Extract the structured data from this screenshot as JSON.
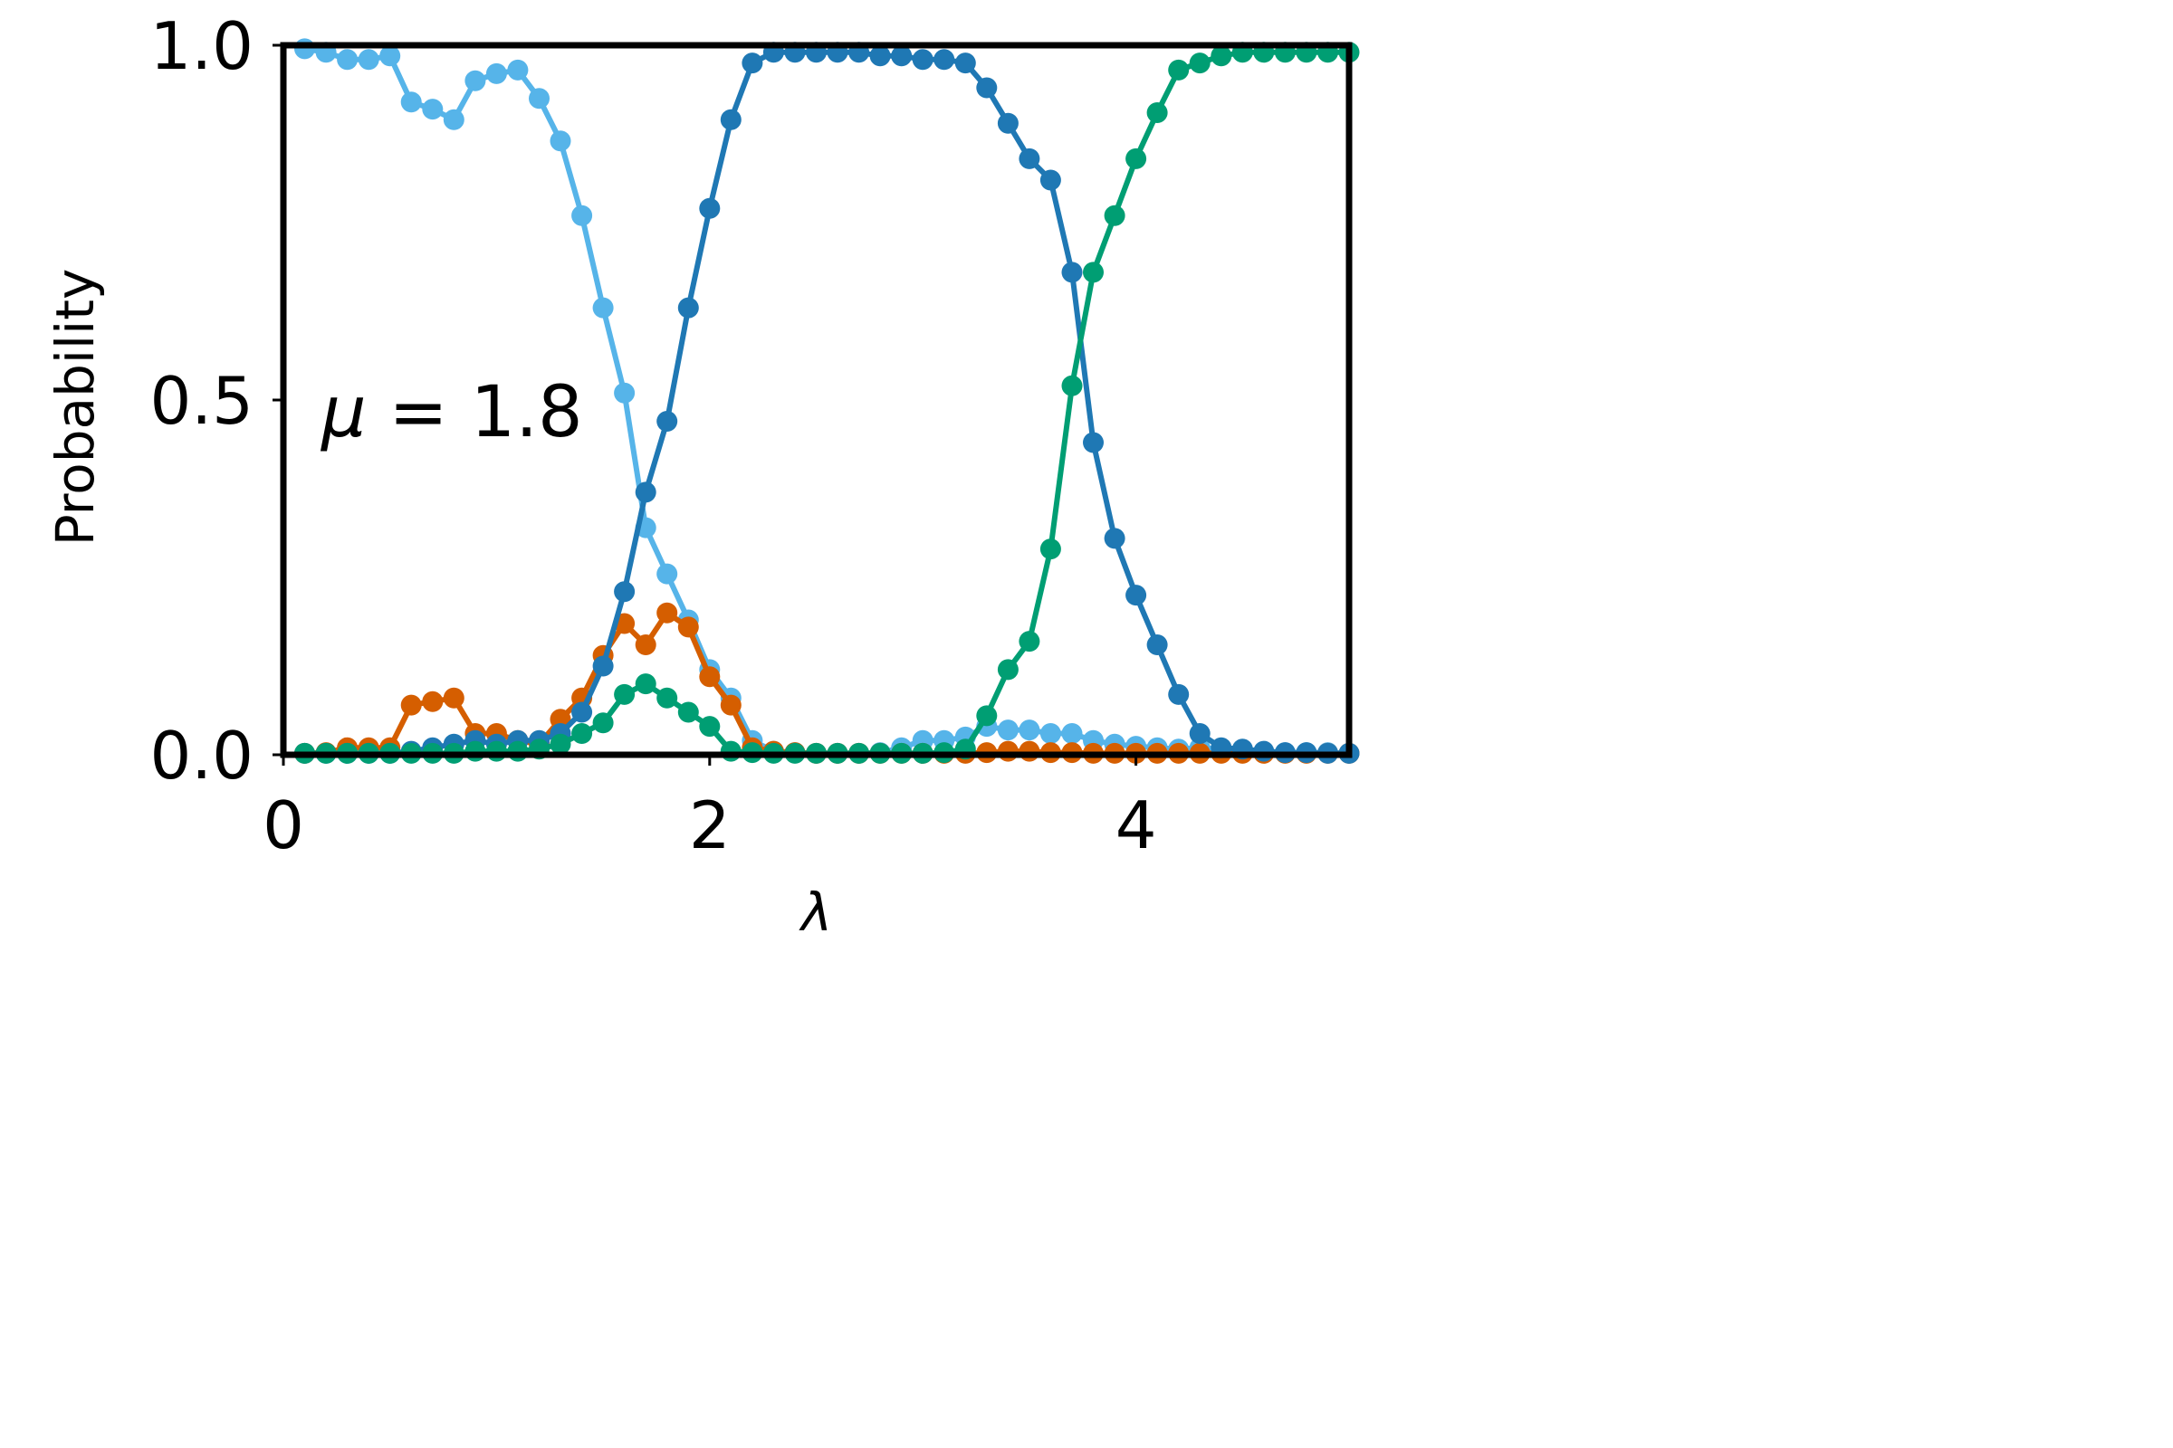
{
  "chart_data": {
    "type": "line",
    "title": "",
    "xlabel": "λ",
    "ylabel": "Probability",
    "xlim": [
      0,
      5
    ],
    "ylim": [
      0,
      1
    ],
    "xticks": [
      0,
      2,
      4
    ],
    "xtick_labels": [
      "0",
      "2",
      "4"
    ],
    "yticks": [
      0,
      0.5,
      1
    ],
    "ytick_labels": [
      "0.0",
      "0.5",
      "1.0"
    ],
    "grid": false,
    "legend": "none",
    "annotation": {
      "symbol": "μ",
      "text": " = 1.8"
    },
    "x": [
      0.1,
      0.2,
      0.3,
      0.4,
      0.5,
      0.6,
      0.7,
      0.8,
      0.9,
      1.0,
      1.1,
      1.2,
      1.3,
      1.4,
      1.5,
      1.6,
      1.7,
      1.8,
      1.9,
      2.0,
      2.1,
      2.2,
      2.3,
      2.4,
      2.5,
      2.6,
      2.7,
      2.8,
      2.9,
      3.0,
      3.1,
      3.2,
      3.3,
      3.4,
      3.5,
      3.6,
      3.7,
      3.8,
      3.9,
      4.0,
      4.1,
      4.2,
      4.3,
      4.4,
      4.5,
      4.6,
      4.7,
      4.8,
      4.9,
      5.0
    ],
    "series": [
      {
        "color": "#56b4e9",
        "values": [
          0.995,
          0.99,
          0.98,
          0.98,
          0.985,
          0.92,
          0.91,
          0.895,
          0.95,
          0.96,
          0.965,
          0.925,
          0.865,
          0.76,
          0.63,
          0.51,
          0.32,
          0.255,
          0.19,
          0.12,
          0.08,
          0.02,
          0.005,
          0.003,
          0.002,
          0.002,
          0.002,
          0.003,
          0.01,
          0.02,
          0.02,
          0.025,
          0.04,
          0.035,
          0.035,
          0.03,
          0.03,
          0.02,
          0.015,
          0.012,
          0.01,
          0.008,
          0.01,
          0.008,
          0.005,
          0.004,
          0.003,
          0.003,
          0.003,
          0.002
        ]
      },
      {
        "color": "#d55e00",
        "values": [
          0.002,
          0.003,
          0.01,
          0.01,
          0.01,
          0.07,
          0.075,
          0.08,
          0.03,
          0.03,
          0.02,
          0.015,
          0.05,
          0.08,
          0.14,
          0.185,
          0.155,
          0.2,
          0.18,
          0.11,
          0.07,
          0.01,
          0.005,
          0.003,
          0.002,
          0.002,
          0.002,
          0.002,
          0.002,
          0.002,
          0.002,
          0.002,
          0.003,
          0.005,
          0.005,
          0.003,
          0.003,
          0.002,
          0.002,
          0.002,
          0.002,
          0.002,
          0.002,
          0.002,
          0.002,
          0.002,
          0.002,
          0.002,
          0.002,
          0.002
        ]
      },
      {
        "color": "#1f78b4",
        "values": [
          0.002,
          0.002,
          0.002,
          0.002,
          0.002,
          0.005,
          0.01,
          0.015,
          0.02,
          0.015,
          0.02,
          0.02,
          0.03,
          0.06,
          0.125,
          0.23,
          0.37,
          0.47,
          0.63,
          0.77,
          0.895,
          0.975,
          0.99,
          0.99,
          0.99,
          0.99,
          0.99,
          0.985,
          0.985,
          0.98,
          0.98,
          0.975,
          0.94,
          0.89,
          0.84,
          0.81,
          0.68,
          0.44,
          0.305,
          0.225,
          0.155,
          0.085,
          0.03,
          0.01,
          0.008,
          0.005,
          0.003,
          0.003,
          0.002,
          0.002
        ]
      },
      {
        "color": "#009e73",
        "values": [
          0.002,
          0.002,
          0.002,
          0.002,
          0.002,
          0.002,
          0.002,
          0.002,
          0.005,
          0.005,
          0.005,
          0.008,
          0.015,
          0.03,
          0.045,
          0.085,
          0.1,
          0.08,
          0.06,
          0.04,
          0.005,
          0.003,
          0.002,
          0.002,
          0.002,
          0.002,
          0.002,
          0.002,
          0.002,
          0.002,
          0.003,
          0.008,
          0.055,
          0.12,
          0.16,
          0.29,
          0.52,
          0.68,
          0.76,
          0.84,
          0.905,
          0.965,
          0.975,
          0.985,
          0.99,
          0.99,
          0.99,
          0.99,
          0.99,
          0.99
        ]
      }
    ]
  }
}
